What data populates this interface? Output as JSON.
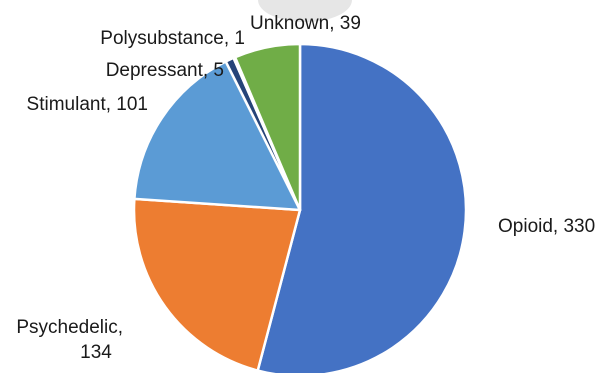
{
  "chart_data": {
    "type": "pie",
    "title": "",
    "slices": [
      {
        "label": "Opioid",
        "value": 330,
        "display": "Opioid, 330",
        "color": "#4472C4"
      },
      {
        "label": "Psychedelic",
        "value": 134,
        "display": "Psychedelic, 134",
        "color": "#ED7D31"
      },
      {
        "label": "Stimulant",
        "value": 101,
        "display": "Stimulant, 101",
        "color": "#5B9BD5"
      },
      {
        "label": "Depressant",
        "value": 5,
        "display": "Depressant, 5",
        "color": "#264478"
      },
      {
        "label": "Polysubstance",
        "value": 1,
        "display": "Polysubstance, 1",
        "color": "#A5A5A5"
      },
      {
        "label": "Unknown",
        "value": 39,
        "display": "Unknown, 39",
        "color": "#70AD47"
      }
    ],
    "start_angle": "12 o'clock",
    "direction": "clockwise",
    "legend": "none",
    "data_labels": "outside, category and value"
  }
}
